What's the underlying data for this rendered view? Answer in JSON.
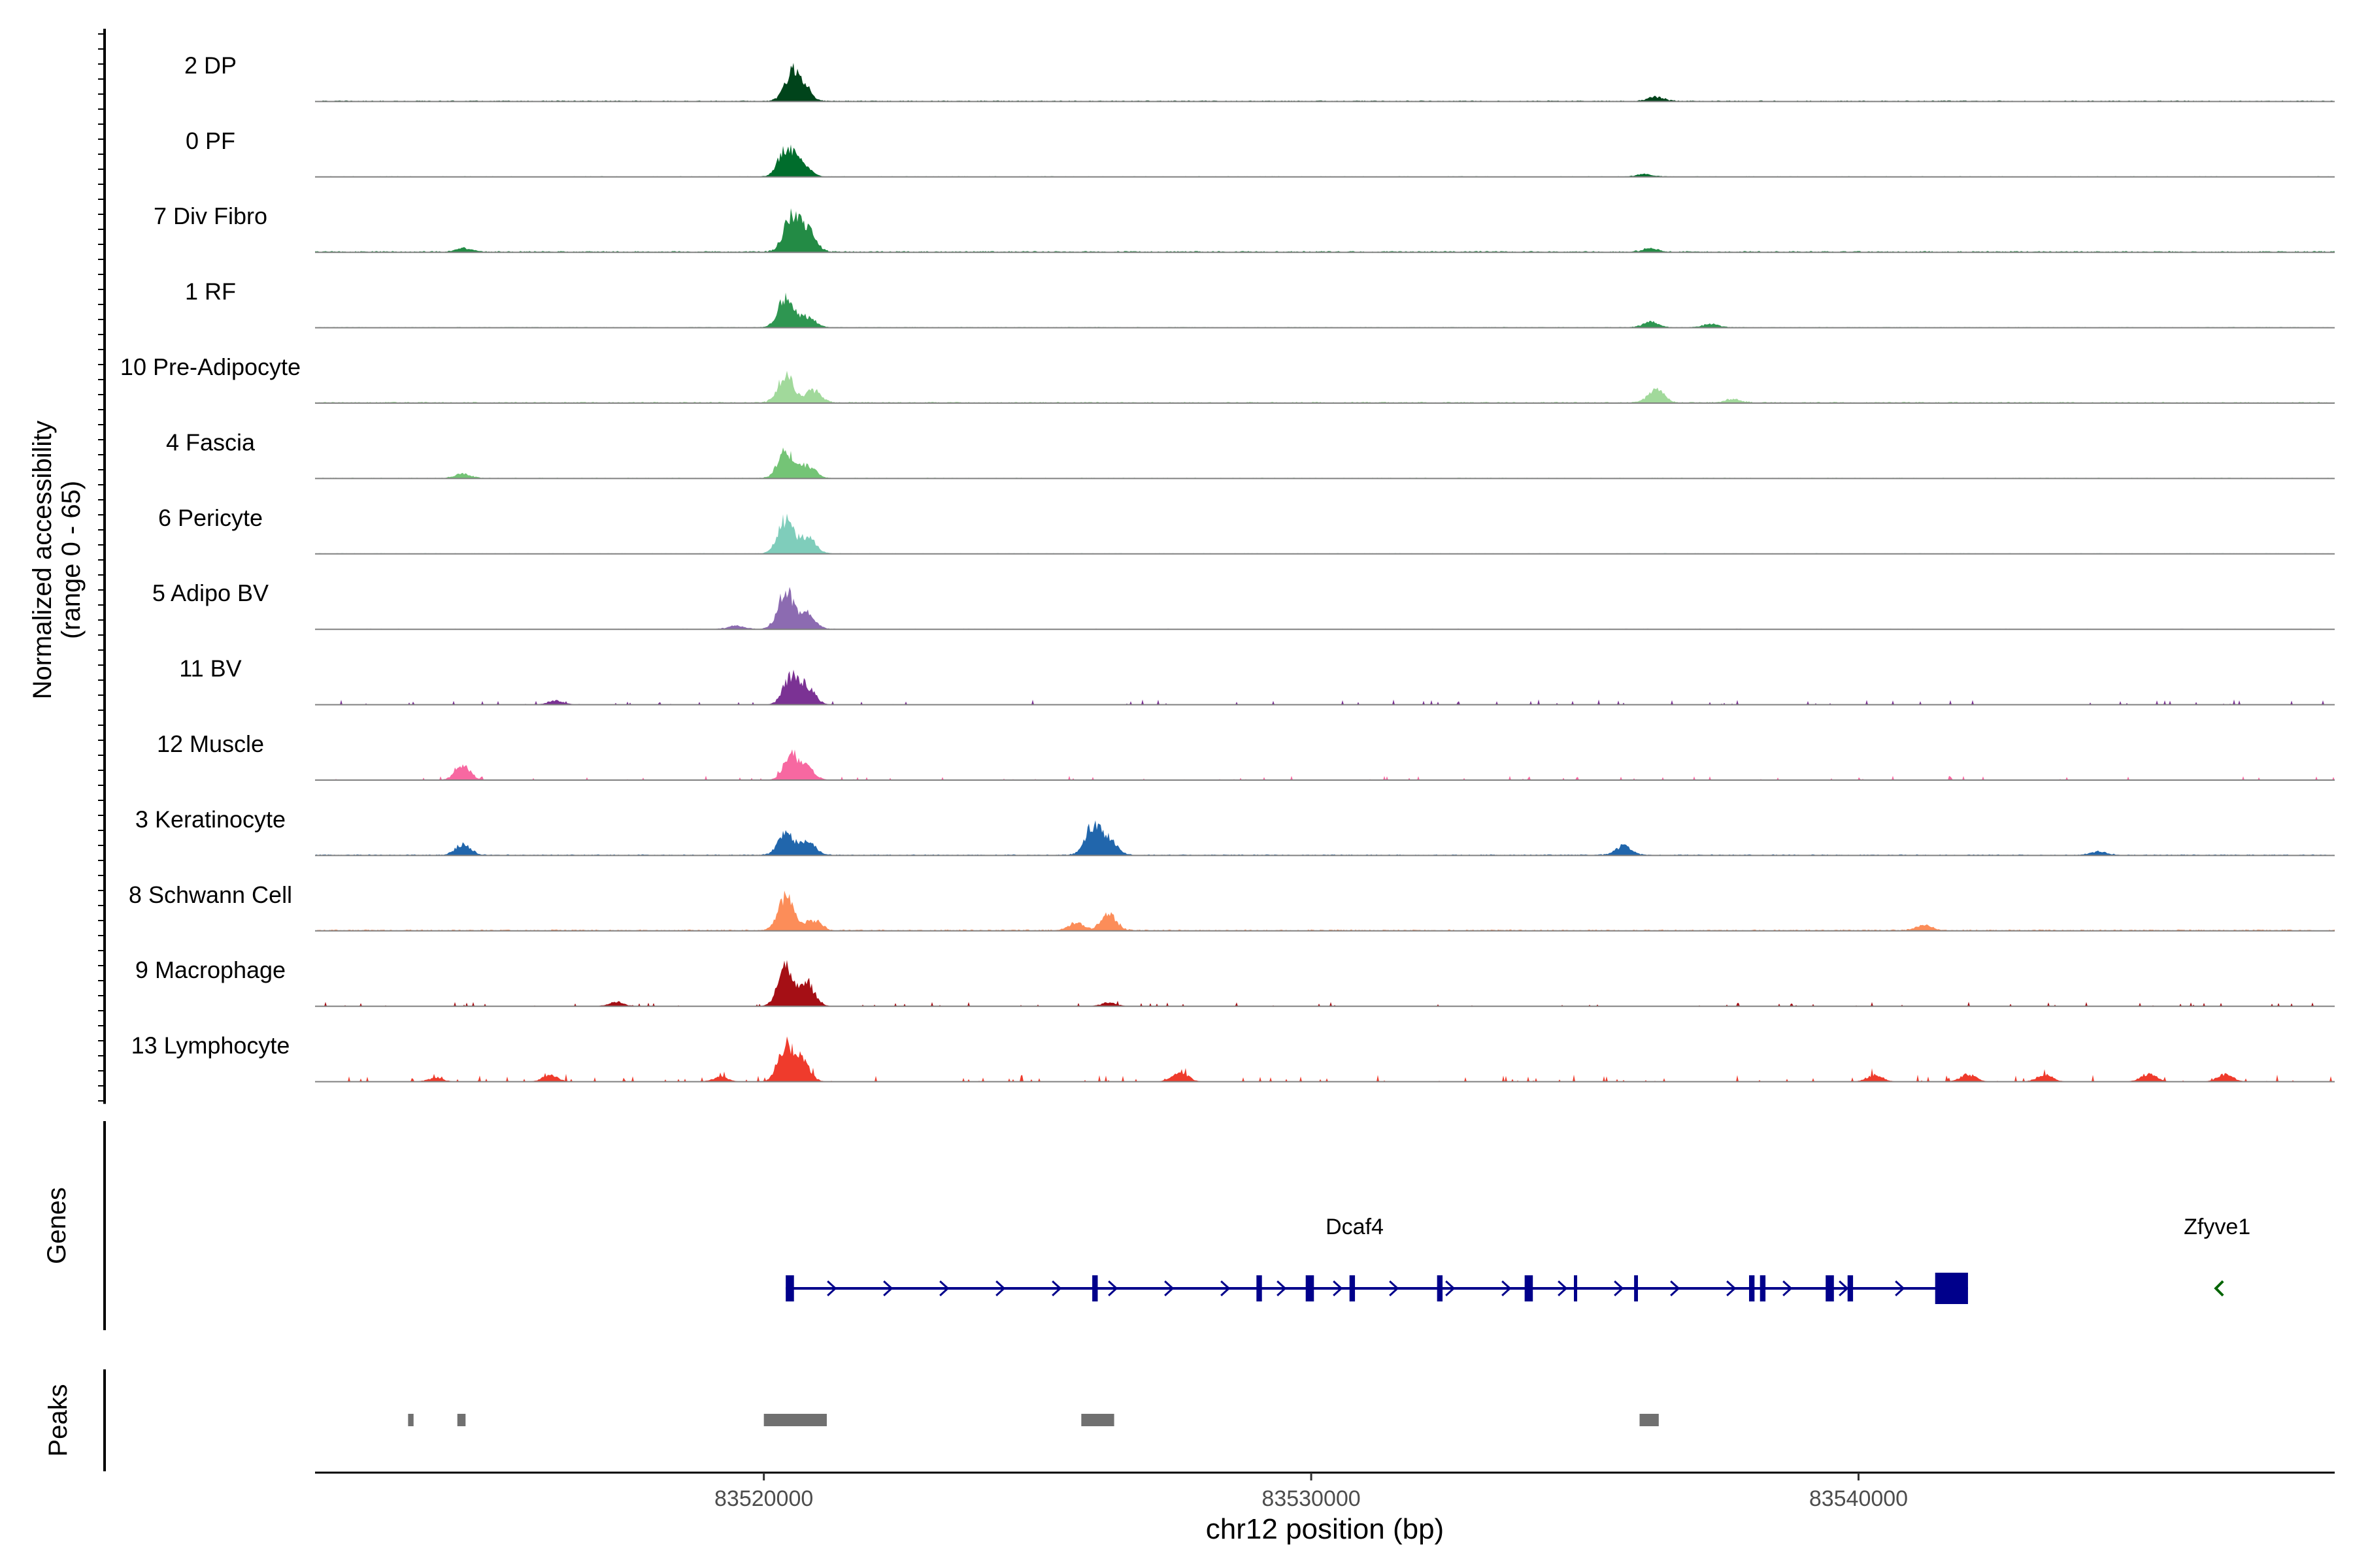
{
  "chart_data": {
    "type": "coverage-track",
    "title": "",
    "ylabel_line1": "Normalized accessibility",
    "ylabel_line2": "(range 0 - 65)",
    "y_range": [
      0,
      65
    ],
    "xlabel": "chr12 position (bp)",
    "x_range": [
      83511800,
      83548700
    ],
    "x_ticks": [
      83520000,
      83530000,
      83540000
    ],
    "x_tick_labels": [
      "83520000",
      "83530000",
      "83540000"
    ],
    "tracks": [
      {
        "name": "2 DP",
        "color": "#00441b",
        "peaks": [
          [
            83520500,
            26
          ],
          [
            83520700,
            18
          ],
          [
            83536300,
            5
          ]
        ],
        "noise": 1.0,
        "sparse": false
      },
      {
        "name": "0 PF",
        "color": "#006d2c",
        "peaks": [
          [
            83520400,
            30
          ],
          [
            83520700,
            16
          ],
          [
            83536100,
            3
          ]
        ],
        "noise": 0.6,
        "sparse": false
      },
      {
        "name": "7 Div Fibro",
        "color": "#238b45",
        "peaks": [
          [
            83520500,
            38
          ],
          [
            83520800,
            24
          ],
          [
            83514500,
            4
          ],
          [
            83536200,
            4
          ]
        ],
        "noise": 1.2,
        "sparse": false
      },
      {
        "name": "1 RF",
        "color": "#2e9651",
        "peaks": [
          [
            83520400,
            32
          ],
          [
            83520800,
            12
          ],
          [
            83536200,
            6
          ],
          [
            83537300,
            4
          ]
        ],
        "noise": 0.7,
        "sparse": false
      },
      {
        "name": "10 Pre-Adipocyte",
        "color": "#a1d99b",
        "peaks": [
          [
            83520400,
            30
          ],
          [
            83520900,
            14
          ],
          [
            83536300,
            16
          ],
          [
            83537700,
            4
          ]
        ],
        "noise": 1.2,
        "sparse": false
      },
      {
        "name": "4 Fascia",
        "color": "#74c476",
        "peaks": [
          [
            83520400,
            30
          ],
          [
            83520800,
            14
          ],
          [
            83514500,
            5
          ]
        ],
        "noise": 0.7,
        "sparse": false
      },
      {
        "name": "6 Pericyte",
        "color": "#7fcdbb",
        "peaks": [
          [
            83520400,
            38
          ],
          [
            83520800,
            18
          ]
        ],
        "noise": 0.6,
        "sparse": false
      },
      {
        "name": "5 Adipo BV",
        "color": "#8c6bb1",
        "peaks": [
          [
            83520400,
            42
          ],
          [
            83520800,
            18
          ],
          [
            83519500,
            4
          ]
        ],
        "noise": 0.5,
        "sparse": false
      },
      {
        "name": "11 BV",
        "color": "#7b3294",
        "peaks": [
          [
            83520500,
            32
          ],
          [
            83520800,
            18
          ],
          [
            83516200,
            5
          ]
        ],
        "noise": 1.2,
        "sparse": true
      },
      {
        "name": "12 Muscle",
        "color": "#f768a1",
        "peaks": [
          [
            83520500,
            28
          ],
          [
            83520800,
            12
          ],
          [
            83514500,
            16
          ]
        ],
        "noise": 1.0,
        "sparse": true
      },
      {
        "name": "3 Keratinocyte",
        "color": "#2166ac",
        "peaks": [
          [
            83520400,
            24
          ],
          [
            83520800,
            14
          ],
          [
            83526000,
            30
          ],
          [
            83526300,
            18
          ],
          [
            83514500,
            12
          ],
          [
            83535700,
            10
          ],
          [
            83544400,
            4
          ]
        ],
        "noise": 1.0,
        "sparse": false
      },
      {
        "name": "8 Schwann Cell",
        "color": "#fc8d59",
        "peaks": [
          [
            83520400,
            38
          ],
          [
            83520900,
            12
          ],
          [
            83526300,
            18
          ],
          [
            83525700,
            8
          ],
          [
            83541200,
            6
          ]
        ],
        "noise": 1.2,
        "sparse": false
      },
      {
        "name": "9 Macrophage",
        "color": "#a50f15",
        "peaks": [
          [
            83520400,
            44
          ],
          [
            83520800,
            24
          ],
          [
            83517300,
            5
          ],
          [
            83526300,
            4
          ]
        ],
        "noise": 1.0,
        "sparse": true
      },
      {
        "name": "13 Lymphocyte",
        "color": "#ef3b2c",
        "peaks": [
          [
            83520400,
            40
          ],
          [
            83520700,
            22
          ],
          [
            83527600,
            12
          ],
          [
            83540300,
            8
          ],
          [
            83542000,
            8
          ],
          [
            83543400,
            8
          ],
          [
            83545300,
            9
          ],
          [
            83546700,
            8
          ],
          [
            83514000,
            4
          ],
          [
            83516100,
            7
          ],
          [
            83519200,
            5
          ]
        ],
        "noise": 1.6,
        "sparse": true
      }
    ],
    "genes_label": "Genes",
    "genes": [
      {
        "name": "Dcaf4",
        "strand": "+",
        "start": 83520400,
        "end": 83542000,
        "color": "#00008b",
        "exons": [
          [
            83520400,
            83520550
          ],
          [
            83526000,
            83526100
          ],
          [
            83529000,
            83529100
          ],
          [
            83529900,
            83530050
          ],
          [
            83530700,
            83530800
          ],
          [
            83532300,
            83532400
          ],
          [
            83533900,
            83534050
          ],
          [
            83534800,
            83534830
          ],
          [
            83535900,
            83535970
          ],
          [
            83538000,
            83538100
          ],
          [
            83538200,
            83538300
          ],
          [
            83539400,
            83539550
          ],
          [
            83539800,
            83539900
          ],
          [
            83541400,
            83542000
          ]
        ]
      },
      {
        "name": "Zfyve1",
        "strand": "-",
        "start": 83546400,
        "end": 83546800,
        "color": "#006400",
        "exons": []
      }
    ],
    "peaks_label": "Peaks",
    "peak_regions": [
      [
        83513500,
        83513600
      ],
      [
        83514400,
        83514550
      ],
      [
        83520000,
        83521150
      ],
      [
        83525800,
        83526400
      ],
      [
        83536000,
        83536350
      ]
    ]
  }
}
